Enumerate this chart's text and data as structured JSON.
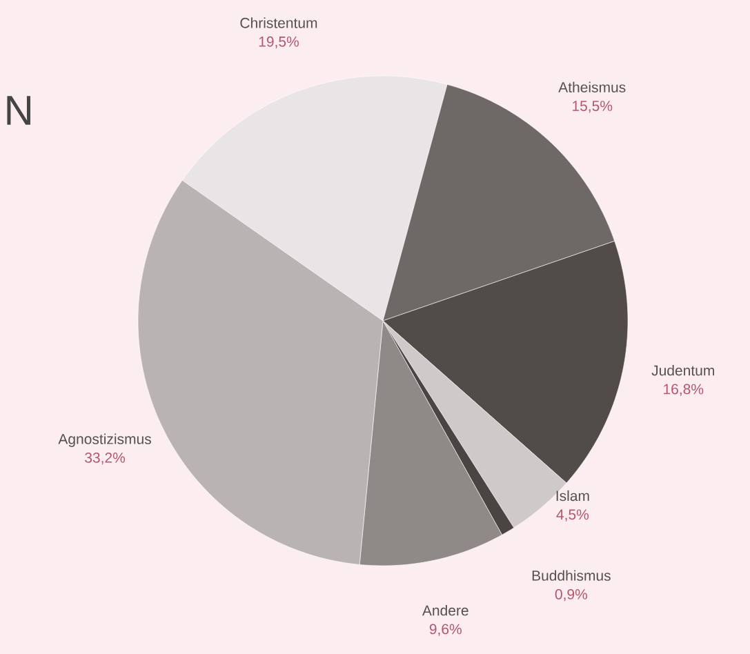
{
  "chart_data": {
    "type": "pie",
    "title": "N",
    "categories": [
      "Christentum",
      "Atheismus",
      "Judentum",
      "Islam",
      "Buddhismus",
      "Andere",
      "Agnostizismus"
    ],
    "values": [
      19.5,
      15.5,
      16.8,
      4.5,
      0.9,
      9.6,
      33.2
    ],
    "value_labels": [
      "19,5%",
      "15,5%",
      "16,8%",
      "4,5%",
      "0,9%",
      "9,6%",
      "33,2%"
    ],
    "colors": [
      "#e9e4e5",
      "#6e6866",
      "#524c49",
      "#cfc9c9",
      "#4a4542",
      "#8f8987",
      "#b9b3b4"
    ]
  }
}
